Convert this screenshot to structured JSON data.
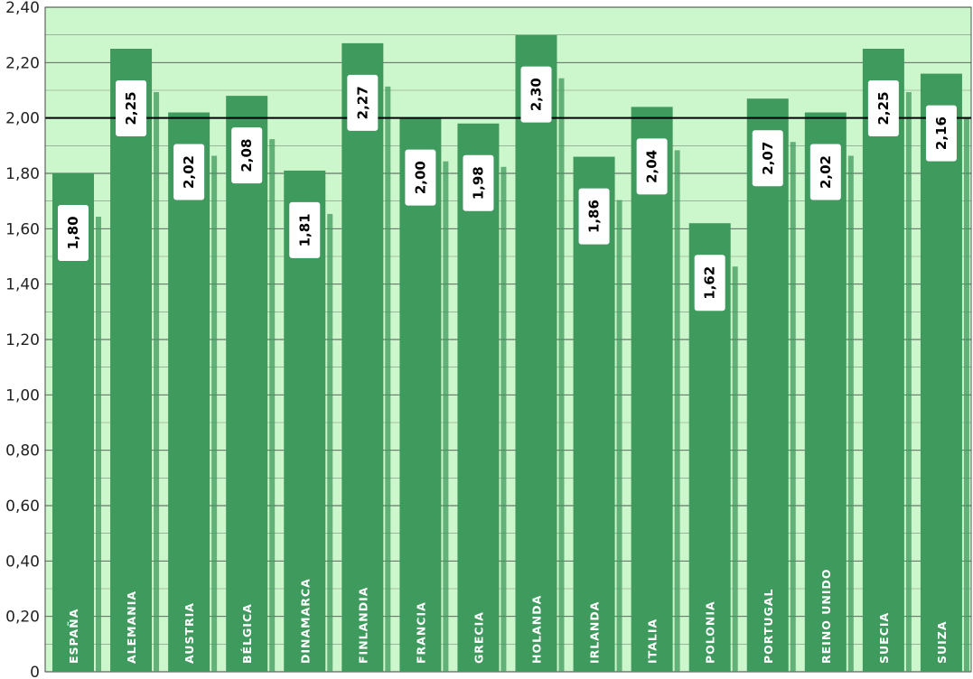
{
  "chart_data": {
    "type": "bar",
    "categories": [
      "ESPAÑA",
      "ALEMANIA",
      "AUSTRIA",
      "BÉLGICA",
      "DINAMARCA",
      "FINLANDIA",
      "FRANCIA",
      "GRECIA",
      "HOLANDA",
      "IRLANDA",
      "ITALIA",
      "POLONIA",
      "PORTUGAL",
      "REINO UNIDO",
      "SUECIA",
      "SUIZA"
    ],
    "values": [
      1.8,
      2.25,
      2.02,
      2.08,
      1.81,
      2.27,
      2.0,
      1.98,
      2.3,
      1.86,
      2.04,
      1.62,
      2.07,
      2.02,
      2.25,
      2.16
    ],
    "value_labels": [
      "1,80",
      "2,25",
      "2,02",
      "2,08",
      "1,81",
      "2,27",
      "2,00",
      "1,98",
      "2,30",
      "1,86",
      "2,04",
      "1,62",
      "2,07",
      "2,02",
      "2,25",
      "2,16"
    ],
    "title": "",
    "xlabel": "",
    "ylabel": "",
    "ylim": [
      0,
      2.4
    ],
    "y_ticks": [
      0,
      0.2,
      0.4,
      0.6,
      0.8,
      1.0,
      1.2,
      1.4,
      1.6,
      1.8,
      2.0,
      2.2,
      2.4
    ],
    "y_tick_labels": [
      "0",
      "0,20",
      "0,40",
      "0,60",
      "0,80",
      "1,00",
      "1,20",
      "1,40",
      "1,60",
      "1,80",
      "2,00",
      "2,20",
      "2,40"
    ],
    "reference_line": 2.0,
    "grid": true,
    "colors": {
      "bar": "#3e9a5d",
      "plot_background": "#ccf7cc",
      "gridline": "#3a3a3a",
      "reference_line": "#000000",
      "label_box": "#ffffff"
    }
  }
}
